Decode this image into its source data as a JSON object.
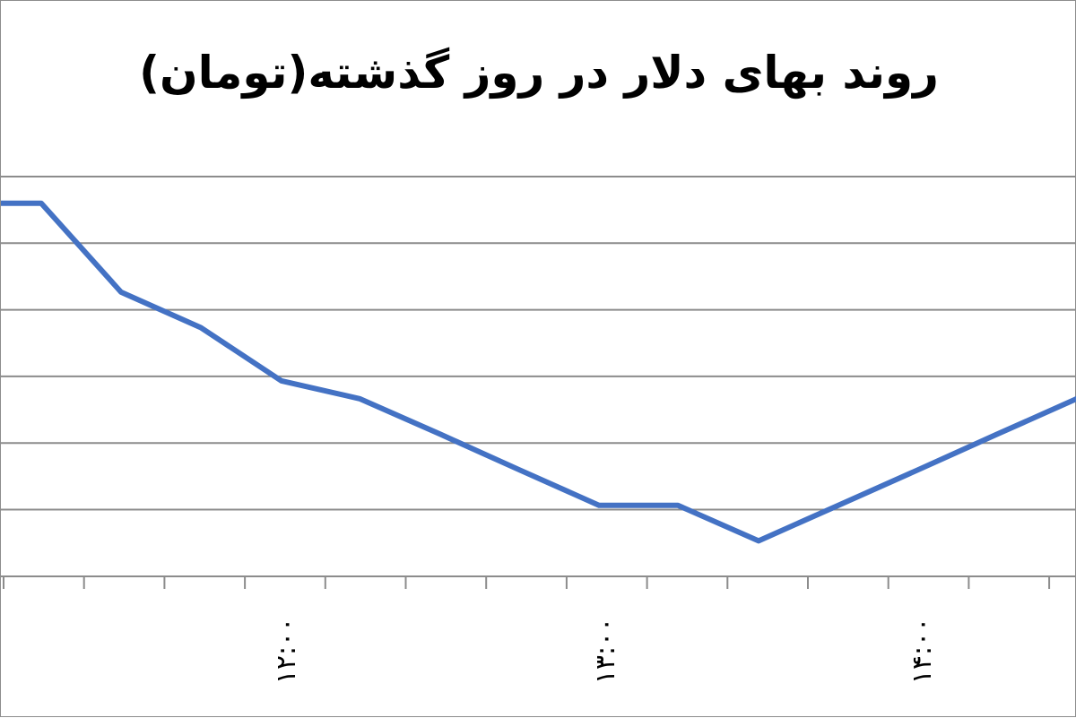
{
  "chart_data": {
    "type": "line",
    "title": "روند بهای دلار در روز گذشته(تومان)",
    "xlabel": "",
    "ylabel": "",
    "x_tick_labels": [
      "۱۲:۰۰",
      "۱۳:۰۰",
      "۱۴:۰۰"
    ],
    "gridlines": true,
    "legend": "none",
    "series": [
      {
        "color": "#4472c4",
        "values": [
          3670,
          3670,
          3570,
          3530,
          3470,
          3450,
          3410,
          3370,
          3330,
          3330,
          3290,
          3330,
          3370,
          3410,
          3450
        ]
      }
    ],
    "ylim": [
      3250,
      3700
    ]
  }
}
